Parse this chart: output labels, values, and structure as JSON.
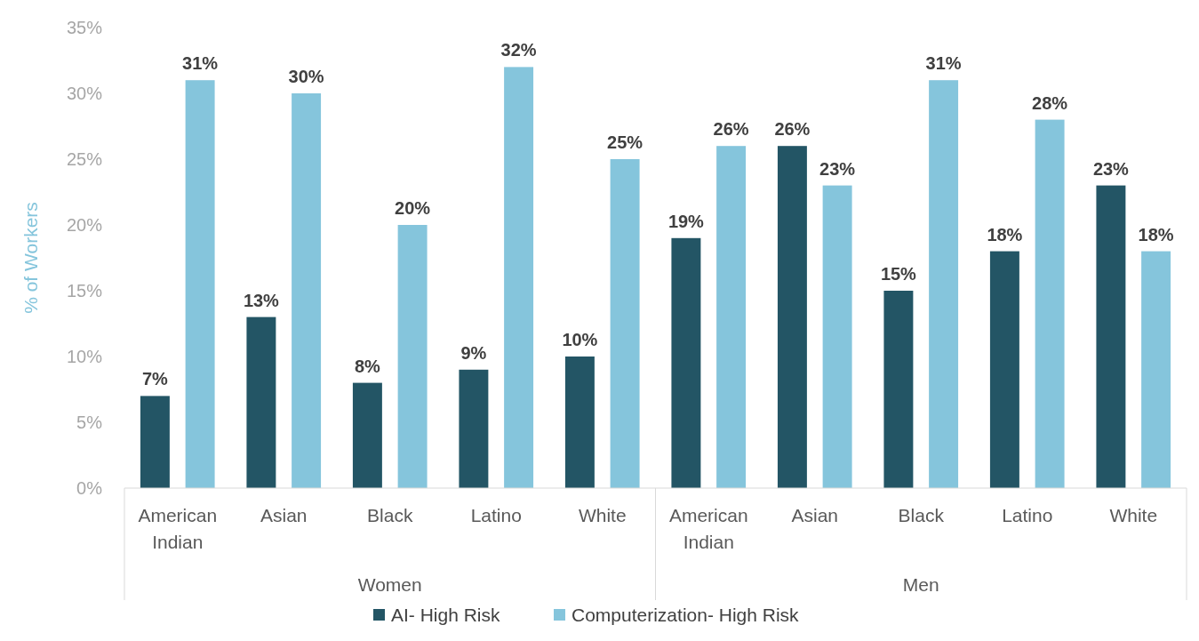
{
  "chart_data": {
    "type": "bar",
    "ylabel": "% of Workers",
    "categories": [
      "American Indian",
      "Asian",
      "Black",
      "Latino",
      "White",
      "American Indian",
      "Asian",
      "Black",
      "Latino",
      "White"
    ],
    "series": [
      {
        "name": "AI- High Risk",
        "color": "#235565",
        "values": [
          7,
          13,
          8,
          9,
          10,
          19,
          26,
          15,
          18,
          23
        ],
        "value_labels": [
          "7%",
          "13%",
          "8%",
          "9%",
          "10%",
          "19%",
          "26%",
          "15%",
          "18%",
          "23%"
        ]
      },
      {
        "name": "Computerization- High Risk",
        "color": "#85c5dc",
        "values": [
          31,
          30,
          20,
          32,
          25,
          26,
          23,
          31,
          28,
          18
        ],
        "value_labels": [
          "31%",
          "30%",
          "20%",
          "32%",
          "25%",
          "26%",
          "23%",
          "31%",
          "28%",
          "18%"
        ]
      }
    ],
    "annotations": [
      "Women",
      "Men"
    ],
    "ylim": [
      0,
      35
    ],
    "yticks": [
      {
        "value": 0,
        "label": "0%"
      },
      {
        "value": 5,
        "label": "5%"
      },
      {
        "value": 10,
        "label": "10%"
      },
      {
        "value": 15,
        "label": "15%"
      },
      {
        "value": 20,
        "label": "20%"
      },
      {
        "value": 25,
        "label": "25%"
      },
      {
        "value": 30,
        "label": "30%"
      },
      {
        "value": 35,
        "label": "35%"
      }
    ],
    "grid": false,
    "legend": "bottom"
  }
}
